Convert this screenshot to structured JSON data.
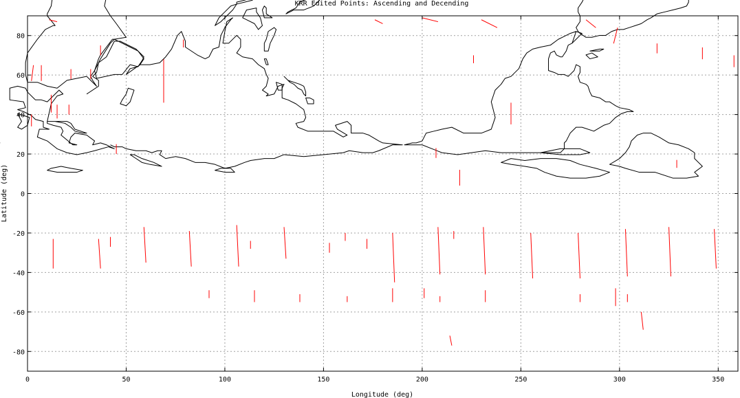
{
  "chart_data": {
    "type": "scatter",
    "title": "KRR Edited Points:  Ascending and Decending",
    "xlabel": "Longitude (deg)",
    "ylabel": "Latitude (deg)",
    "xlim": [
      0,
      360
    ],
    "ylim": [
      -90,
      90
    ],
    "xticks": [
      0,
      50,
      100,
      150,
      200,
      250,
      300,
      350
    ],
    "yticks": [
      -80,
      -60,
      -40,
      -20,
      0,
      20,
      40,
      60,
      80
    ],
    "grid": true,
    "colors": {
      "points": "#ff0000",
      "coastline": "#000000",
      "grid": "#a0a0a0"
    },
    "series": [
      {
        "segments": [
          [
            [
              7,
              65
            ],
            [
              7,
              57
            ]
          ],
          [
            [
              12,
              50
            ],
            [
              12,
              42
            ]
          ],
          [
            [
              15,
              45
            ],
            [
              15,
              38
            ]
          ],
          [
            [
              3,
              65
            ],
            [
              2,
              57
            ]
          ],
          [
            [
              2,
              40
            ],
            [
              2,
              34
            ]
          ],
          [
            [
              22,
              63
            ],
            [
              22,
              58
            ]
          ],
          [
            [
              32,
              63
            ],
            [
              32,
              58
            ]
          ],
          [
            [
              37,
              75
            ],
            [
              37,
              70
            ]
          ],
          [
            [
              69,
              68
            ],
            [
              69,
              46
            ]
          ],
          [
            [
              79,
              78
            ],
            [
              79,
              74
            ]
          ],
          [
            [
              45,
              25
            ],
            [
              45,
              20
            ]
          ],
          [
            [
              12,
              45
            ],
            [
              12,
              41
            ]
          ],
          [
            [
              21,
              45
            ],
            [
              21,
              40
            ]
          ],
          [
            [
              13,
              -23
            ],
            [
              13,
              -38
            ]
          ],
          [
            [
              36,
              -23
            ],
            [
              37,
              -38
            ]
          ],
          [
            [
              42,
              -22
            ],
            [
              42,
              -27
            ]
          ],
          [
            [
              59,
              -17
            ],
            [
              60,
              -35
            ]
          ],
          [
            [
              82,
              -19
            ],
            [
              83,
              -37
            ]
          ],
          [
            [
              106,
              -16
            ],
            [
              107,
              -37
            ]
          ],
          [
            [
              113,
              -24
            ],
            [
              113,
              -28
            ]
          ],
          [
            [
              130,
              -17
            ],
            [
              131,
              -33
            ]
          ],
          [
            [
              153,
              -25
            ],
            [
              153,
              -30
            ]
          ],
          [
            [
              161,
              -20
            ],
            [
              161,
              -24
            ]
          ],
          [
            [
              172,
              -23
            ],
            [
              172,
              -28
            ]
          ],
          [
            [
              185,
              -20
            ],
            [
              186,
              -45
            ]
          ],
          [
            [
              208,
              -17
            ],
            [
              209,
              -41
            ]
          ],
          [
            [
              216,
              -19
            ],
            [
              216,
              -23
            ]
          ],
          [
            [
              231,
              -17
            ],
            [
              232,
              -41
            ]
          ],
          [
            [
              255,
              -20
            ],
            [
              256,
              -43
            ]
          ],
          [
            [
              279,
              -20
            ],
            [
              280,
              -43
            ]
          ],
          [
            [
              303,
              -18
            ],
            [
              304,
              -42
            ]
          ],
          [
            [
              325,
              -17
            ],
            [
              326,
              -42
            ]
          ],
          [
            [
              348,
              -18
            ],
            [
              349,
              -38
            ]
          ],
          [
            [
              92,
              -49
            ],
            [
              92,
              -53
            ]
          ],
          [
            [
              115,
              -49
            ],
            [
              115,
              -55
            ]
          ],
          [
            [
              138,
              -51
            ],
            [
              138,
              -55
            ]
          ],
          [
            [
              162,
              -52
            ],
            [
              162,
              -55
            ]
          ],
          [
            [
              185,
              -48
            ],
            [
              185,
              -55
            ]
          ],
          [
            [
              201,
              -48
            ],
            [
              201,
              -53
            ]
          ],
          [
            [
              209,
              -52
            ],
            [
              209,
              -55
            ]
          ],
          [
            [
              232,
              -49
            ],
            [
              232,
              -55
            ]
          ],
          [
            [
              280,
              -51
            ],
            [
              280,
              -55
            ]
          ],
          [
            [
              298,
              -48
            ],
            [
              298,
              -57
            ]
          ],
          [
            [
              304,
              -51
            ],
            [
              304,
              -55
            ]
          ],
          [
            [
              311,
              -60
            ],
            [
              312,
              -69
            ]
          ],
          [
            [
              214,
              -72
            ],
            [
              215,
              -77
            ]
          ],
          [
            [
              207,
              23
            ],
            [
              207,
              18
            ]
          ],
          [
            [
              219,
              12
            ],
            [
              219,
              4
            ]
          ],
          [
            [
              245,
              46
            ],
            [
              245,
              35
            ]
          ],
          [
            [
              329,
              17
            ],
            [
              329,
              13
            ]
          ],
          [
            [
              226,
              70
            ],
            [
              226,
              66
            ]
          ],
          [
            [
              299,
              84
            ],
            [
              297,
              76
            ]
          ],
          [
            [
              319,
              76
            ],
            [
              319,
              71
            ]
          ],
          [
            [
              342,
              74
            ],
            [
              342,
              68
            ]
          ],
          [
            [
              358,
              70
            ],
            [
              358,
              64
            ]
          ],
          [
            [
              15,
              87
            ],
            [
              11,
              88
            ]
          ],
          [
            [
              180,
              86
            ],
            [
              176,
              88
            ]
          ],
          [
            [
              238,
              84
            ],
            [
              230,
              88
            ]
          ],
          [
            [
              288,
              84
            ],
            [
              283,
              88
            ]
          ],
          [
            [
              208,
              87
            ],
            [
              200,
              89
            ]
          ]
        ]
      }
    ]
  }
}
